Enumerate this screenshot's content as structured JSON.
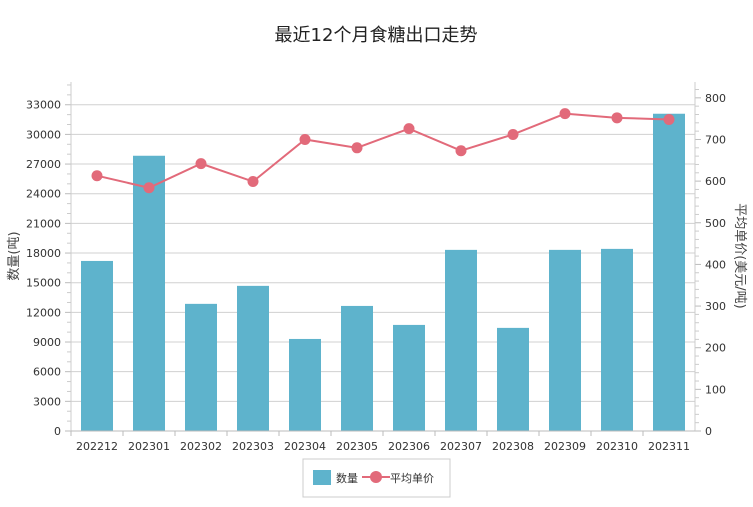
{
  "chart_data": {
    "type": "bar+line",
    "title": "最近12个月食糖出口走势",
    "categories": [
      "202212",
      "202301",
      "202302",
      "202303",
      "202304",
      "202305",
      "202306",
      "202307",
      "202308",
      "202309",
      "202310",
      "202311"
    ],
    "series": [
      {
        "name": "数量",
        "type": "bar",
        "axis": "left",
        "color": "#5eb3cc",
        "values": [
          17200,
          27840,
          12860,
          14680,
          9310,
          12650,
          10730,
          18320,
          10430,
          18320,
          18420,
          32090
        ]
      },
      {
        "name": "平均单价",
        "type": "line",
        "axis": "right",
        "color": "#e26a7a",
        "values": [
          613,
          584,
          642,
          599,
          700,
          680,
          726,
          673,
          712,
          762,
          752,
          748
        ]
      }
    ],
    "ylabel": "数量(吨)",
    "y2label": "平均单价(美元/吨)",
    "ylim": [
      0,
      35300
    ],
    "y2lim": [
      0,
      838
    ],
    "yticks": [
      0,
      3000,
      6000,
      9000,
      12000,
      15000,
      18000,
      21000,
      24000,
      27000,
      30000,
      33000
    ],
    "y2ticks": [
      0,
      100,
      200,
      300,
      400,
      500,
      600,
      700,
      800
    ],
    "grid": true,
    "legend": "bottom"
  }
}
